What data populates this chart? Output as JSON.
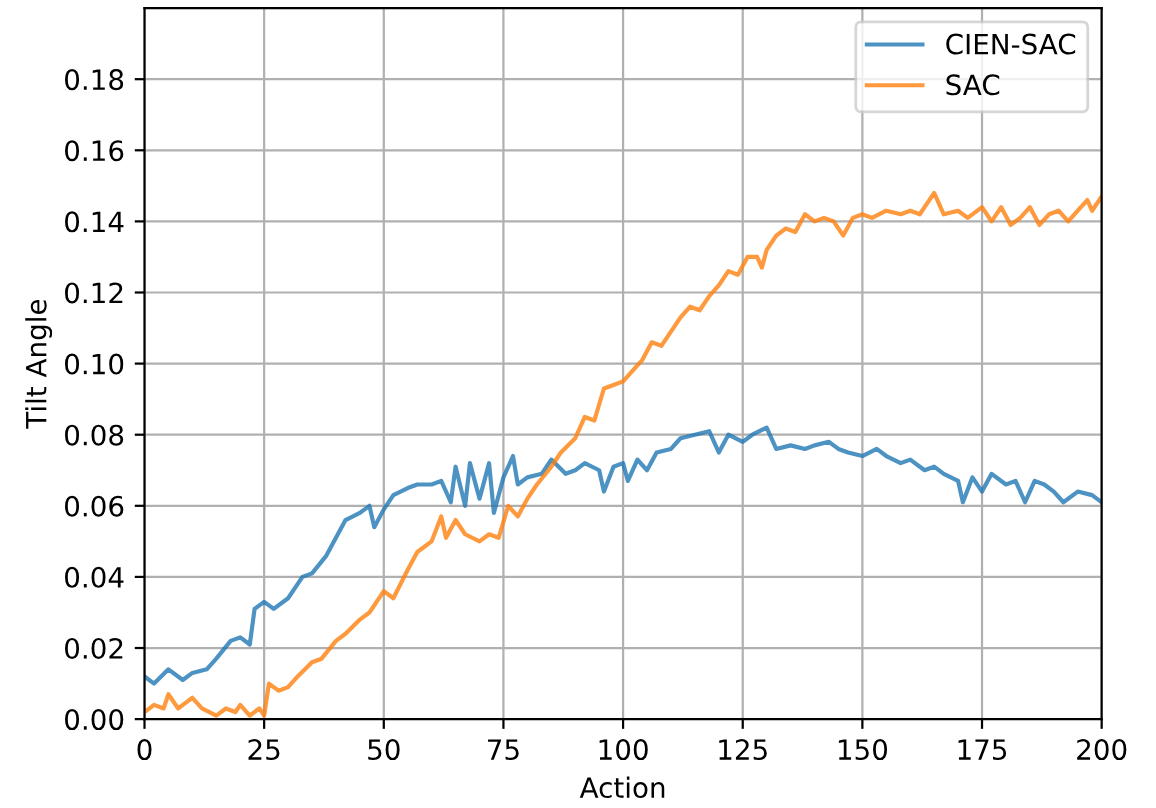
{
  "chart_data": {
    "type": "line",
    "xlabel": "Action",
    "ylabel": "Tilt Angle",
    "xlim": [
      0,
      200
    ],
    "ylim": [
      0,
      0.2
    ],
    "xticks": [
      0,
      25,
      50,
      75,
      100,
      125,
      150,
      175,
      200
    ],
    "yticks": [
      {
        "value": 0,
        "label": "0.00"
      },
      {
        "value": 0.02,
        "label": "0.02"
      },
      {
        "value": 0.04,
        "label": "0.04"
      },
      {
        "value": 0.06,
        "label": "0.06"
      },
      {
        "value": 0.08,
        "label": "0.08"
      },
      {
        "value": 0.1,
        "label": "0.10"
      },
      {
        "value": 0.12,
        "label": "0.12"
      },
      {
        "value": 0.14,
        "label": "0.14"
      },
      {
        "value": 0.16,
        "label": "0.16"
      },
      {
        "value": 0.18,
        "label": "0.18"
      }
    ],
    "grid": true,
    "legend": "top right",
    "series": [
      {
        "name": "CIEN-SAC",
        "color": "#1f77b4",
        "x": [
          0,
          2,
          5,
          8,
          10,
          13,
          15,
          18,
          20,
          22,
          23,
          25,
          27,
          30,
          33,
          35,
          38,
          40,
          42,
          45,
          47,
          48,
          50,
          52,
          55,
          57,
          60,
          62,
          64,
          65,
          67,
          68,
          70,
          72,
          73,
          75,
          77,
          78,
          80,
          83,
          85,
          88,
          90,
          92,
          95,
          96,
          98,
          100,
          101,
          103,
          105,
          107,
          110,
          112,
          115,
          118,
          120,
          122,
          125,
          127,
          130,
          132,
          135,
          138,
          140,
          143,
          145,
          147,
          150,
          153,
          155,
          158,
          160,
          163,
          165,
          167,
          170,
          171,
          173,
          175,
          177,
          180,
          182,
          184,
          186,
          188,
          190,
          192,
          195,
          198,
          200
        ],
        "values": [
          0.012,
          0.01,
          0.014,
          0.011,
          0.013,
          0.014,
          0.017,
          0.022,
          0.023,
          0.021,
          0.031,
          0.033,
          0.031,
          0.034,
          0.04,
          0.041,
          0.046,
          0.051,
          0.056,
          0.058,
          0.06,
          0.054,
          0.059,
          0.063,
          0.065,
          0.066,
          0.066,
          0.067,
          0.061,
          0.071,
          0.06,
          0.072,
          0.062,
          0.072,
          0.058,
          0.068,
          0.074,
          0.066,
          0.068,
          0.069,
          0.073,
          0.069,
          0.07,
          0.072,
          0.07,
          0.064,
          0.071,
          0.072,
          0.067,
          0.073,
          0.07,
          0.075,
          0.076,
          0.079,
          0.08,
          0.081,
          0.075,
          0.08,
          0.078,
          0.08,
          0.082,
          0.076,
          0.077,
          0.076,
          0.077,
          0.078,
          0.076,
          0.075,
          0.074,
          0.076,
          0.074,
          0.072,
          0.073,
          0.07,
          0.071,
          0.069,
          0.067,
          0.061,
          0.068,
          0.064,
          0.069,
          0.066,
          0.067,
          0.061,
          0.067,
          0.066,
          0.064,
          0.061,
          0.064,
          0.063,
          0.061
        ]
      },
      {
        "name": "SAC",
        "color": "#ff7f0e",
        "x": [
          0,
          2,
          4,
          5,
          7,
          9,
          10,
          12,
          15,
          17,
          19,
          20,
          22,
          24,
          25,
          26,
          28,
          30,
          32,
          35,
          37,
          40,
          42,
          45,
          47,
          50,
          52,
          55,
          57,
          60,
          62,
          63,
          65,
          67,
          70,
          72,
          74,
          76,
          78,
          80,
          82,
          85,
          87,
          90,
          92,
          94,
          96,
          98,
          100,
          102,
          104,
          106,
          108,
          110,
          112,
          114,
          116,
          118,
          120,
          122,
          124,
          126,
          128,
          129,
          130,
          132,
          134,
          136,
          138,
          140,
          142,
          144,
          146,
          148,
          150,
          152,
          155,
          158,
          160,
          162,
          165,
          167,
          170,
          172,
          175,
          177,
          179,
          181,
          183,
          185,
          187,
          189,
          191,
          193,
          195,
          197,
          198,
          200
        ],
        "values": [
          0.002,
          0.004,
          0.003,
          0.007,
          0.003,
          0.005,
          0.006,
          0.003,
          0.001,
          0.003,
          0.002,
          0.004,
          0.001,
          0.003,
          0.001,
          0.01,
          0.008,
          0.009,
          0.012,
          0.016,
          0.017,
          0.022,
          0.024,
          0.028,
          0.03,
          0.036,
          0.034,
          0.042,
          0.047,
          0.05,
          0.057,
          0.051,
          0.056,
          0.052,
          0.05,
          0.052,
          0.051,
          0.06,
          0.057,
          0.062,
          0.066,
          0.071,
          0.075,
          0.079,
          0.085,
          0.084,
          0.093,
          0.094,
          0.095,
          0.098,
          0.101,
          0.106,
          0.105,
          0.109,
          0.113,
          0.116,
          0.115,
          0.119,
          0.122,
          0.126,
          0.125,
          0.13,
          0.13,
          0.127,
          0.132,
          0.136,
          0.138,
          0.137,
          0.142,
          0.14,
          0.141,
          0.14,
          0.136,
          0.141,
          0.142,
          0.141,
          0.143,
          0.142,
          0.143,
          0.142,
          0.148,
          0.142,
          0.143,
          0.141,
          0.144,
          0.14,
          0.144,
          0.139,
          0.141,
          0.144,
          0.139,
          0.142,
          0.143,
          0.14,
          0.143,
          0.146,
          0.143,
          0.147
        ]
      }
    ]
  }
}
